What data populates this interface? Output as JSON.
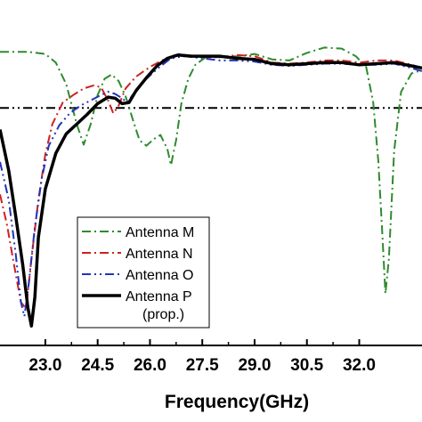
{
  "chart_data": {
    "type": "line",
    "title": "",
    "xlabel": "Frequency(GHz)",
    "ylabel": "",
    "xlim": [
      21.7,
      33.8
    ],
    "ylim": [
      -32,
      0
    ],
    "grid": false,
    "legend_position": "bottom-center",
    "x_ticks": [
      23.0,
      24.5,
      26.0,
      27.5,
      29.0,
      30.5,
      32.0
    ],
    "x_tick_labels": [
      "23.0",
      "24.5",
      "26.0",
      "27.5",
      "29.0",
      "30.5",
      "32.0"
    ],
    "reference_line": {
      "y": -10,
      "color": "#000000"
    },
    "legend_extra": "(prop.)",
    "series": [
      {
        "name": "Antenna M",
        "color": "#2e8b2e",
        "dash": "10,4,2,4",
        "width": 2,
        "points": [
          [
            21.7,
            -4.8
          ],
          [
            22.5,
            -4.8
          ],
          [
            23.0,
            -5.0
          ],
          [
            23.3,
            -5.8
          ],
          [
            23.6,
            -7.8
          ],
          [
            23.9,
            -11.5
          ],
          [
            24.1,
            -13.4
          ],
          [
            24.3,
            -11.5
          ],
          [
            24.5,
            -8.8
          ],
          [
            24.7,
            -7.3
          ],
          [
            24.9,
            -6.9
          ],
          [
            25.1,
            -7.5
          ],
          [
            25.3,
            -8.9
          ],
          [
            25.5,
            -11.0
          ],
          [
            25.7,
            -13.0
          ],
          [
            25.9,
            -13.5
          ],
          [
            26.1,
            -12.9
          ],
          [
            26.3,
            -12.5
          ],
          [
            26.5,
            -13.8
          ],
          [
            26.6,
            -15.3
          ],
          [
            26.75,
            -13.0
          ],
          [
            26.9,
            -9.6
          ],
          [
            27.1,
            -7.3
          ],
          [
            27.3,
            -6.0
          ],
          [
            27.6,
            -5.3
          ],
          [
            28.0,
            -5.3
          ],
          [
            28.5,
            -5.2
          ],
          [
            29.0,
            -5.0
          ],
          [
            29.5,
            -5.5
          ],
          [
            30.0,
            -5.6
          ],
          [
            30.5,
            -4.9
          ],
          [
            31.0,
            -4.4
          ],
          [
            31.5,
            -4.5
          ],
          [
            31.9,
            -5.2
          ],
          [
            32.2,
            -6.2
          ],
          [
            32.4,
            -9.5
          ],
          [
            32.55,
            -15.0
          ],
          [
            32.65,
            -21.0
          ],
          [
            32.75,
            -27.2
          ],
          [
            32.85,
            -24.0
          ],
          [
            33.0,
            -14.0
          ],
          [
            33.2,
            -8.5
          ],
          [
            33.5,
            -6.8
          ],
          [
            33.8,
            -6.5
          ]
        ]
      },
      {
        "name": "Antenna N",
        "color": "#cc2222",
        "dash": "10,4,2,4",
        "width": 2,
        "points": [
          [
            21.7,
            -18.0
          ],
          [
            21.9,
            -20.8
          ],
          [
            22.1,
            -24.5
          ],
          [
            22.3,
            -28.0
          ],
          [
            22.45,
            -28.6
          ],
          [
            22.6,
            -24.0
          ],
          [
            22.8,
            -18.5
          ],
          [
            23.0,
            -14.3
          ],
          [
            23.2,
            -11.5
          ],
          [
            23.5,
            -9.5
          ],
          [
            23.8,
            -8.8
          ],
          [
            24.1,
            -8.2
          ],
          [
            24.4,
            -7.9
          ],
          [
            24.6,
            -8.1
          ],
          [
            24.8,
            -9.3
          ],
          [
            24.95,
            -10.5
          ],
          [
            25.1,
            -9.8
          ],
          [
            25.3,
            -8.2
          ],
          [
            25.6,
            -7.1
          ],
          [
            26.0,
            -6.2
          ],
          [
            26.4,
            -5.5
          ],
          [
            26.8,
            -5.0
          ],
          [
            27.2,
            -5.2
          ],
          [
            27.6,
            -5.3
          ],
          [
            28.0,
            -5.3
          ],
          [
            28.5,
            -5.1
          ],
          [
            29.0,
            -5.2
          ],
          [
            29.5,
            -5.8
          ],
          [
            30.0,
            -5.9
          ],
          [
            30.5,
            -5.8
          ],
          [
            31.0,
            -5.6
          ],
          [
            31.5,
            -5.6
          ],
          [
            32.0,
            -5.8
          ],
          [
            32.5,
            -5.6
          ],
          [
            33.0,
            -5.6
          ],
          [
            33.5,
            -6.0
          ],
          [
            33.8,
            -6.3
          ]
        ]
      },
      {
        "name": "Antenna O",
        "color": "#2233bb",
        "dash": "10,4,2,4,2,4",
        "width": 2,
        "points": [
          [
            21.7,
            -15.0
          ],
          [
            21.95,
            -18.5
          ],
          [
            22.15,
            -23.5
          ],
          [
            22.3,
            -28.0
          ],
          [
            22.4,
            -29.3
          ],
          [
            22.5,
            -27.0
          ],
          [
            22.7,
            -21.0
          ],
          [
            22.9,
            -16.5
          ],
          [
            23.1,
            -13.5
          ],
          [
            23.4,
            -11.6
          ],
          [
            23.7,
            -10.5
          ],
          [
            24.0,
            -9.8
          ],
          [
            24.3,
            -9.3
          ],
          [
            24.6,
            -8.8
          ],
          [
            24.8,
            -8.5
          ],
          [
            25.0,
            -8.7
          ],
          [
            25.2,
            -9.1
          ],
          [
            25.35,
            -9.5
          ],
          [
            25.5,
            -8.8
          ],
          [
            25.8,
            -7.6
          ],
          [
            26.2,
            -6.4
          ],
          [
            26.6,
            -5.4
          ],
          [
            27.0,
            -5.2
          ],
          [
            27.5,
            -5.4
          ],
          [
            28.0,
            -5.6
          ],
          [
            28.5,
            -5.6
          ],
          [
            29.0,
            -5.7
          ],
          [
            29.5,
            -6.0
          ],
          [
            30.0,
            -6.1
          ],
          [
            30.5,
            -6.0
          ],
          [
            31.0,
            -5.9
          ],
          [
            31.5,
            -5.9
          ],
          [
            32.0,
            -6.0
          ],
          [
            32.5,
            -6.0
          ],
          [
            33.0,
            -5.9
          ],
          [
            33.5,
            -6.3
          ],
          [
            33.8,
            -6.6
          ]
        ]
      },
      {
        "name": "Antenna P",
        "color": "#000000",
        "dash": "",
        "width": 3.5,
        "points": [
          [
            21.7,
            -12.0
          ],
          [
            21.95,
            -15.8
          ],
          [
            22.15,
            -20.0
          ],
          [
            22.35,
            -24.5
          ],
          [
            22.5,
            -28.5
          ],
          [
            22.6,
            -30.2
          ],
          [
            22.7,
            -27.5
          ],
          [
            22.8,
            -22.0
          ],
          [
            23.0,
            -17.5
          ],
          [
            23.3,
            -14.2
          ],
          [
            23.6,
            -12.4
          ],
          [
            23.9,
            -11.5
          ],
          [
            24.2,
            -10.6
          ],
          [
            24.5,
            -9.6
          ],
          [
            24.8,
            -9.0
          ],
          [
            25.0,
            -9.1
          ],
          [
            25.2,
            -9.6
          ],
          [
            25.4,
            -9.5
          ],
          [
            25.6,
            -8.4
          ],
          [
            25.9,
            -7.2
          ],
          [
            26.2,
            -6.1
          ],
          [
            26.5,
            -5.4
          ],
          [
            26.8,
            -5.1
          ],
          [
            27.2,
            -5.2
          ],
          [
            27.6,
            -5.2
          ],
          [
            28.0,
            -5.2
          ],
          [
            28.5,
            -5.4
          ],
          [
            29.0,
            -5.5
          ],
          [
            29.5,
            -5.9
          ],
          [
            30.0,
            -6.0
          ],
          [
            30.5,
            -5.9
          ],
          [
            31.0,
            -5.8
          ],
          [
            31.5,
            -5.8
          ],
          [
            32.0,
            -6.0
          ],
          [
            32.5,
            -5.9
          ],
          [
            33.0,
            -5.8
          ],
          [
            33.5,
            -6.1
          ],
          [
            33.8,
            -6.3
          ]
        ]
      }
    ]
  }
}
